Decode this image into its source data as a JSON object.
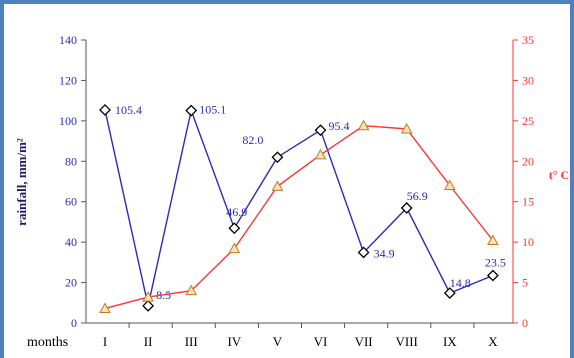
{
  "chart_data": {
    "type": "line",
    "categories": [
      "I",
      "II",
      "III",
      "IV",
      "V",
      "VI",
      "VII",
      "VIII",
      "IX",
      "X"
    ],
    "xlabel": "months",
    "series": [
      {
        "name": "rainfall",
        "axis": "left",
        "color": "#2b2bb8",
        "marker": "diamond",
        "values": [
          105.4,
          8.5,
          105.1,
          46.9,
          82.0,
          95.4,
          34.9,
          56.9,
          14.8,
          23.5
        ],
        "labels": [
          "105.4",
          "8.5",
          "105.1",
          "46.9",
          "82.0",
          "95.4",
          "34.9",
          "56.9",
          "14.8",
          "23.5"
        ]
      },
      {
        "name": "temperature",
        "axis": "right",
        "color": "#ff3333",
        "marker": "triangle",
        "values": [
          1.8,
          3.2,
          4.0,
          9.2,
          16.9,
          20.8,
          24.4,
          24.0,
          17.0,
          10.2
        ]
      }
    ],
    "y_left": {
      "label": "rainfall, mm/m²",
      "ylim": [
        0,
        140
      ],
      "ticks": [
        0,
        20,
        40,
        60,
        80,
        100,
        120,
        140
      ],
      "color": "#2b2bb8"
    },
    "y_right": {
      "label": "t° C",
      "ylim": [
        0,
        35
      ],
      "ticks": [
        0,
        5,
        10,
        15,
        20,
        25,
        30,
        35
      ],
      "color": "#ff3333"
    },
    "grid": false,
    "legend": "none"
  }
}
